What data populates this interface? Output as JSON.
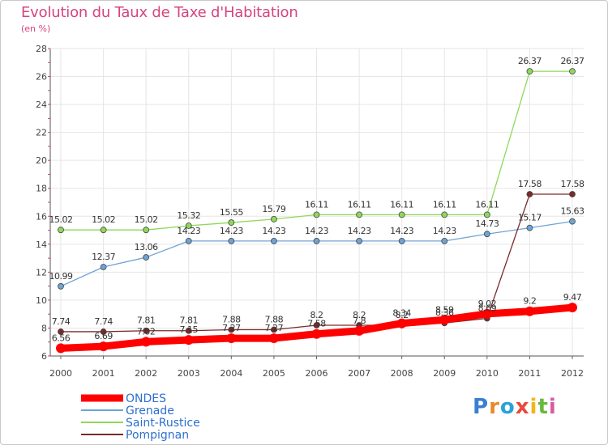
{
  "header": {
    "title": "Evolution du Taux de Taxe d'Habitation",
    "subtitle": "(en %)"
  },
  "logo": {
    "text": "Proxiti",
    "letter_colors": [
      "#3a7fd0",
      "#e8892b",
      "#2aa3d8",
      "#e84a3a",
      "#f2b51c",
      "#6ab83e",
      "#d85aa0"
    ]
  },
  "chart_data": {
    "type": "line",
    "title": "Evolution du Taux de Taxe d'Habitation",
    "ylabel": "(en %)",
    "x": [
      "2000",
      "2001",
      "2002",
      "2003",
      "2004",
      "2005",
      "2006",
      "2007",
      "2008",
      "2009",
      "2010",
      "2011",
      "2012"
    ],
    "ylim": [
      6,
      28
    ],
    "yticks": [
      "6",
      "8",
      "10",
      "12",
      "14",
      "16",
      "18",
      "20",
      "22",
      "24",
      "26",
      "28"
    ],
    "grid": true,
    "legend_position": "bottom-left",
    "series": [
      {
        "name": "ONDES",
        "color": "#ff0000",
        "values": [
          6.56,
          6.69,
          7.02,
          7.15,
          7.27,
          7.27,
          7.58,
          7.8,
          8.34,
          8.59,
          9.02,
          9.2,
          9.47
        ],
        "labels": [
          "6.56",
          "6.69",
          "7.02",
          "7.15",
          "7.27",
          "7.27",
          "7.58",
          "7.8",
          "8.34",
          "8.59",
          "9.02",
          "9.2",
          "9.47"
        ]
      },
      {
        "name": "Grenade",
        "color": "#6fa3d6",
        "values": [
          10.99,
          12.37,
          13.06,
          14.23,
          14.23,
          14.23,
          14.23,
          14.23,
          14.23,
          14.23,
          14.73,
          15.17,
          15.63
        ],
        "labels": [
          "10.99",
          "12.37",
          "13.06",
          "14.23",
          "14.23",
          "14.23",
          "14.23",
          "14.23",
          "14.23",
          "14.23",
          "14.73",
          "15.17",
          "15.63"
        ]
      },
      {
        "name": "Saint-Rustice",
        "color": "#8fd85a",
        "values": [
          15.02,
          15.02,
          15.02,
          15.32,
          15.55,
          15.79,
          16.11,
          16.11,
          16.11,
          16.11,
          16.11,
          26.37,
          26.37
        ],
        "labels": [
          "15.02",
          "15.02",
          "15.02",
          "15.32",
          "15.55",
          "15.79",
          "16.11",
          "16.11",
          "16.11",
          "16.11",
          "16.11",
          "26.37",
          "26.37"
        ]
      },
      {
        "name": "Pompignan",
        "color": "#7a2a2a",
        "values": [
          7.74,
          7.74,
          7.81,
          7.81,
          7.88,
          7.88,
          8.2,
          8.2,
          8.2,
          8.36,
          8.69,
          17.58,
          17.58
        ],
        "labels": [
          "7.74",
          "7.74",
          "7.81",
          "7.81",
          "7.88",
          "7.88",
          "8.2",
          "8.2",
          "8.2",
          "8.36",
          "8.69",
          "17.58",
          "17.58"
        ]
      }
    ]
  }
}
